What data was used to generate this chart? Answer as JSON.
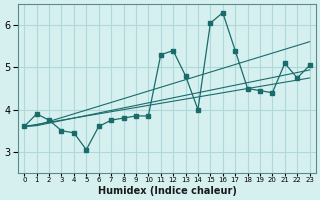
{
  "xlabel": "Humidex (Indice chaleur)",
  "ylabel": "",
  "x_values": [
    0,
    1,
    2,
    3,
    4,
    5,
    6,
    7,
    8,
    9,
    10,
    11,
    12,
    13,
    14,
    15,
    16,
    17,
    18,
    19,
    20,
    21,
    22,
    23
  ],
  "main_line": [
    3.6,
    3.9,
    3.75,
    3.5,
    3.45,
    3.05,
    3.6,
    3.75,
    3.8,
    3.85,
    3.85,
    5.3,
    5.4,
    4.8,
    4.0,
    6.05,
    6.3,
    5.4,
    4.5,
    4.45,
    4.4,
    5.1,
    4.75,
    5.05
  ],
  "trend_line1": [
    3.6,
    3.65,
    3.7,
    3.75,
    3.8,
    3.85,
    3.9,
    3.95,
    4.0,
    4.05,
    4.1,
    4.15,
    4.2,
    4.25,
    4.3,
    4.35,
    4.4,
    4.45,
    4.5,
    4.55,
    4.6,
    4.65,
    4.7,
    4.75
  ],
  "trend_line2": [
    3.6,
    3.62,
    3.68,
    3.74,
    3.8,
    3.86,
    3.92,
    3.98,
    4.04,
    4.1,
    4.16,
    4.22,
    4.28,
    4.34,
    4.4,
    4.46,
    4.52,
    4.58,
    4.64,
    4.7,
    4.76,
    4.82,
    4.88,
    4.94
  ],
  "trend_line3": [
    3.6,
    3.63,
    3.72,
    3.81,
    3.9,
    3.99,
    4.08,
    4.17,
    4.26,
    4.35,
    4.44,
    4.53,
    4.62,
    4.71,
    4.8,
    4.89,
    4.98,
    5.07,
    5.16,
    5.25,
    5.34,
    5.43,
    5.52,
    5.61
  ],
  "line_color": "#1a6b6b",
  "bg_color": "#d6f0f0",
  "grid_color": "#b0d8d8",
  "ylim": [
    2.5,
    6.5
  ],
  "yticks": [
    3,
    4,
    5,
    6
  ],
  "xlim": [
    -0.5,
    23.5
  ]
}
